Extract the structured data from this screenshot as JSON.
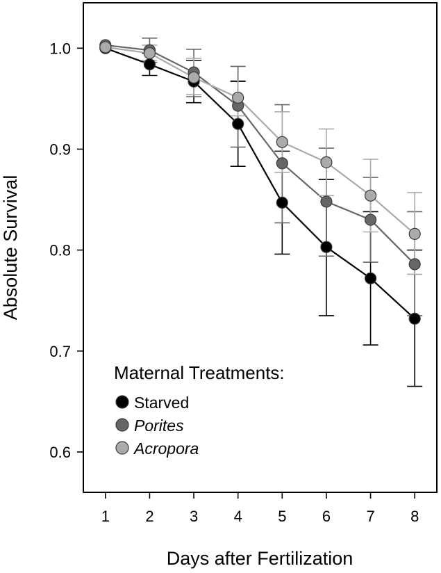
{
  "chart_data": {
    "type": "line",
    "xlabel": "Days after Fertilization",
    "ylabel": "Absolute Survival",
    "x": [
      1,
      2,
      3,
      4,
      5,
      6,
      7,
      8
    ],
    "xlim": [
      0.5,
      8.5
    ],
    "ylim": [
      0.56,
      1.045
    ],
    "yticks": [
      0.6,
      0.7,
      0.8,
      0.9,
      1.0
    ],
    "ytick_labels": [
      "0.6",
      "0.7",
      "0.8",
      "0.9",
      "1.0"
    ],
    "xtick_labels": [
      "1",
      "2",
      "3",
      "4",
      "5",
      "6",
      "7",
      "8"
    ],
    "grid": false,
    "legend": {
      "title": "Maternal Treatments:",
      "placement": "bottom-left"
    },
    "series": [
      {
        "name": "Starved",
        "italic": false,
        "color": "#000000",
        "values": [
          1.0,
          0.984,
          0.967,
          0.925,
          0.847,
          0.803,
          0.772,
          0.732
        ],
        "err_low": [
          1.0,
          0.973,
          0.946,
          0.883,
          0.796,
          0.735,
          0.706,
          0.665
        ],
        "err_high": [
          1.0,
          0.995,
          0.988,
          0.967,
          0.898,
          0.87,
          0.838,
          0.8
        ]
      },
      {
        "name": "Porites",
        "italic": true,
        "color": "#666666",
        "values": [
          1.003,
          0.998,
          0.976,
          0.943,
          0.886,
          0.848,
          0.83,
          0.786
        ],
        "err_low": [
          1.003,
          0.986,
          0.952,
          0.902,
          0.827,
          0.794,
          0.788,
          0.735
        ],
        "err_high": [
          1.003,
          1.01,
          0.999,
          0.982,
          0.944,
          0.901,
          0.872,
          0.838
        ]
      },
      {
        "name": "Acropora",
        "italic": true,
        "color": "#aaaaaa",
        "values": [
          1.001,
          0.995,
          0.971,
          0.951,
          0.907,
          0.887,
          0.854,
          0.816
        ],
        "err_low": [
          1.001,
          0.988,
          0.954,
          0.933,
          0.877,
          0.854,
          0.818,
          0.776
        ],
        "err_high": [
          1.001,
          1.003,
          0.99,
          0.968,
          0.937,
          0.92,
          0.89,
          0.857
        ]
      }
    ]
  }
}
